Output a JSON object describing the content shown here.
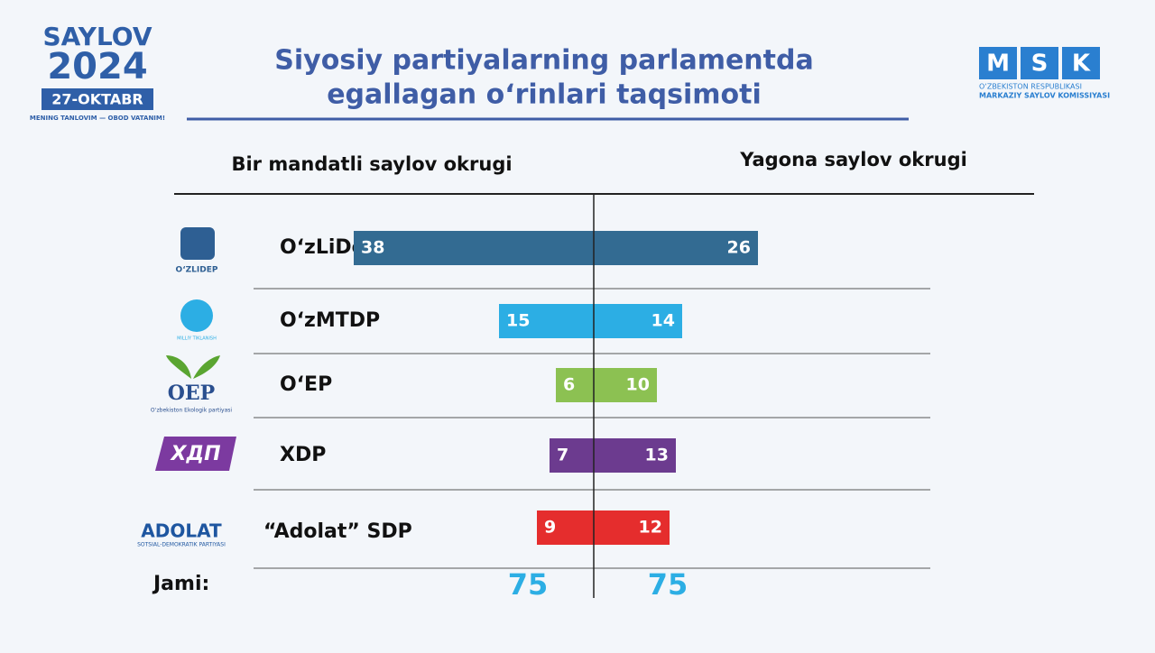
{
  "header": {
    "logo": {
      "word": "SAYLOV",
      "year": "2024",
      "date": "27-OKTABR",
      "motto": "MENING TANLOVIM — OBOD VATANIM!"
    },
    "msk": {
      "letters": [
        "M",
        "S",
        "K"
      ],
      "line1": "O‘ZBEKISTON RESPUBLIKASI",
      "line2": "MARKAZIY SAYLOV KOMISSIYASI"
    }
  },
  "party_logos": [
    [
      "O‘ZLIDEP"
    ],
    [
      "MILLIY TIKLANISH"
    ],
    [
      "OEP",
      "O‘zbekiston Ekologik partiyasi"
    ],
    [
      "ХДП"
    ],
    [
      "ADOLAT",
      "SOTSIAL-DEMOKRATIK PARTIYASI"
    ]
  ],
  "chart_data": {
    "type": "diverging_bar",
    "title": [
      "Siyosiy partiyalarning parlamentda",
      "egallagan o‘rinlari taqsimoti"
    ],
    "categories": [
      "O‘zLiDeP",
      "O‘zMTDP",
      "O‘EP",
      "XDP",
      "“Adolat” SDP"
    ],
    "colors": [
      "#336b92",
      "#2caee4",
      "#8cc152",
      "#6c3b8f",
      "#e52d2d"
    ],
    "series": [
      {
        "name": "Bir mandatli saylov okrugi",
        "side": "left",
        "values": [
          38,
          15,
          6,
          7,
          9
        ]
      },
      {
        "name": "Yagona saylov okrugi",
        "side": "right",
        "values": [
          26,
          14,
          10,
          13,
          12
        ]
      }
    ],
    "totals_label": "Jami:",
    "totals": [
      75,
      75
    ],
    "totals_color": "#2caee4"
  }
}
